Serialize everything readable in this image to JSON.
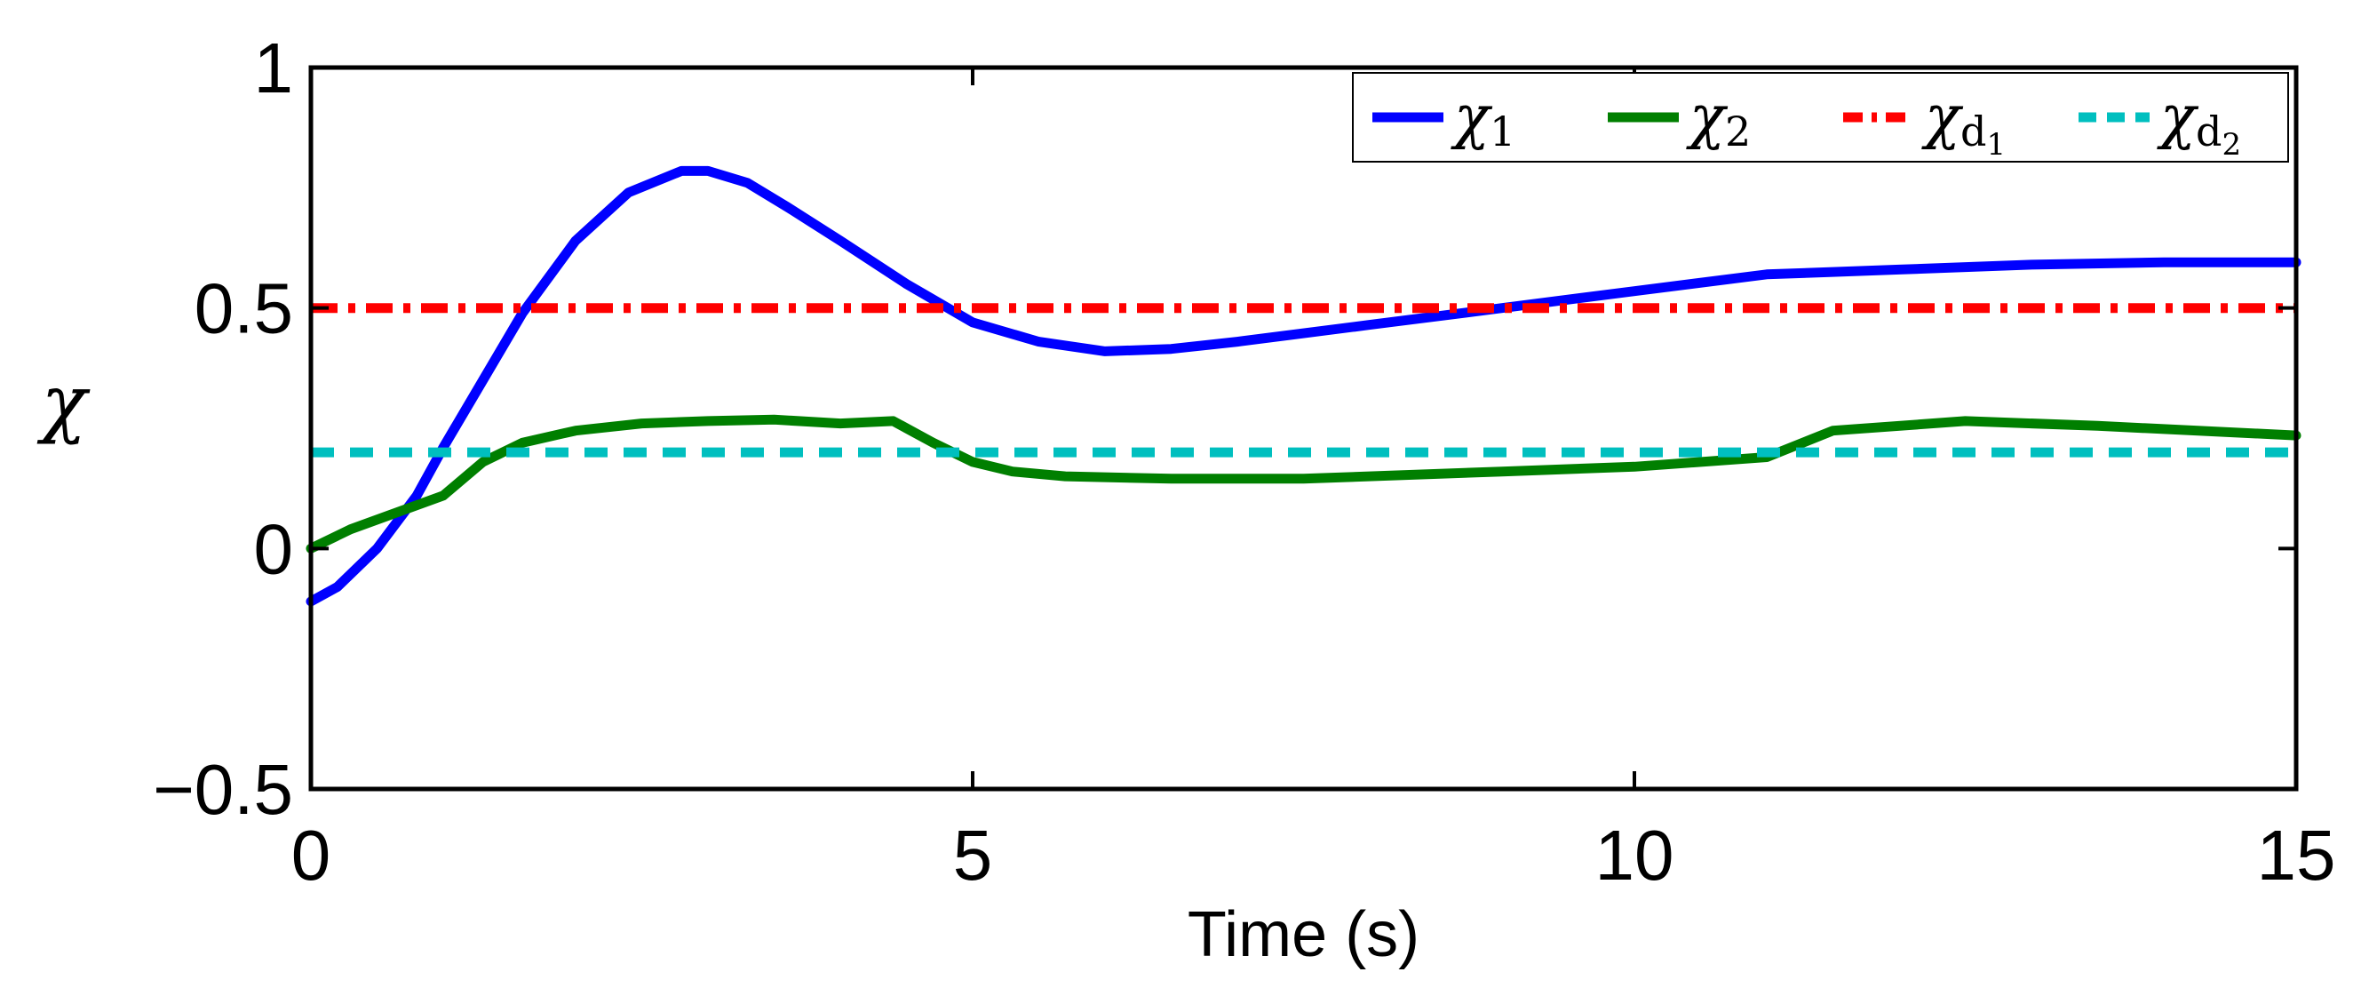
{
  "chart_data": {
    "type": "line",
    "title": "",
    "xlabel": "Time (s)",
    "ylabel": "χ",
    "xlim": [
      0,
      15
    ],
    "ylim": [
      -0.5,
      1
    ],
    "xticks": [
      0,
      5,
      10,
      15
    ],
    "xtick_labels": [
      "0",
      "5",
      "10",
      "15"
    ],
    "yticks": [
      -0.5,
      0,
      0.5,
      1
    ],
    "ytick_labels": [
      "−0.5",
      "0",
      "0.5",
      "1"
    ],
    "grid": false,
    "legend_position": "top-right",
    "series": [
      {
        "name": "χ1",
        "legend_main": "χ",
        "legend_sub": "1",
        "legend_subsub": "",
        "color": "#0000ff",
        "style": "solid",
        "x": [
          0,
          0.2,
          0.5,
          0.8,
          1.0,
          1.3,
          1.6,
          2.0,
          2.4,
          2.8,
          3.0,
          3.3,
          3.6,
          4.0,
          4.5,
          5.0,
          5.5,
          6.0,
          6.5,
          7.0,
          8.0,
          9.0,
          10.0,
          11.0,
          11.5,
          12.0,
          13.0,
          14.0,
          15.0
        ],
        "y": [
          -0.11,
          -0.08,
          0.0,
          0.11,
          0.21,
          0.35,
          0.49,
          0.64,
          0.74,
          0.785,
          0.785,
          0.76,
          0.71,
          0.64,
          0.55,
          0.47,
          0.43,
          0.41,
          0.415,
          0.43,
          0.465,
          0.5,
          0.535,
          0.57,
          0.575,
          0.58,
          0.59,
          0.595,
          0.595
        ]
      },
      {
        "name": "χ2",
        "legend_main": "χ",
        "legend_sub": "2",
        "legend_subsub": "",
        "color": "#007f00",
        "style": "solid",
        "x": [
          0,
          0.3,
          0.6,
          1.0,
          1.3,
          1.6,
          2.0,
          2.5,
          3.0,
          3.5,
          4.0,
          4.4,
          4.7,
          5.0,
          5.3,
          5.7,
          6.5,
          7.5,
          9.0,
          10.0,
          11.0,
          11.5,
          12.5,
          13.5,
          15.0
        ],
        "y": [
          0.0,
          0.04,
          0.07,
          0.11,
          0.18,
          0.22,
          0.245,
          0.26,
          0.265,
          0.268,
          0.26,
          0.265,
          0.22,
          0.18,
          0.16,
          0.15,
          0.145,
          0.145,
          0.16,
          0.17,
          0.19,
          0.245,
          0.265,
          0.255,
          0.235
        ]
      },
      {
        "name": "χd1",
        "legend_main": "χ",
        "legend_sub": "d",
        "legend_subsub": "1",
        "color": "#ff0000",
        "style": "dashdot",
        "x": [
          0,
          15
        ],
        "y": [
          0.5,
          0.5
        ]
      },
      {
        "name": "χd2",
        "legend_main": "χ",
        "legend_sub": "d",
        "legend_subsub": "2",
        "color": "#00bfbf",
        "style": "dashed",
        "x": [
          0,
          15
        ],
        "y": [
          0.2,
          0.2
        ]
      }
    ]
  }
}
